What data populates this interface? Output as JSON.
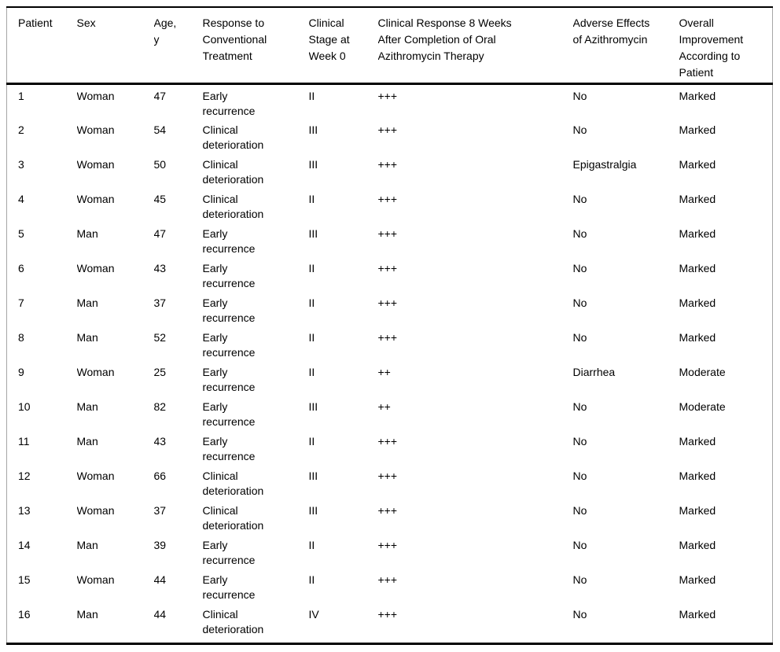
{
  "table": {
    "title_semantic": "Patient outcomes after oral azithromycin therapy",
    "columns": [
      {
        "key": "patient",
        "label": "Patient"
      },
      {
        "key": "sex",
        "label": "Sex"
      },
      {
        "key": "age",
        "label": "Age,\ny"
      },
      {
        "key": "response-conventional",
        "label": "Response to\nConventional\nTreatment"
      },
      {
        "key": "clinical-stage",
        "label": "Clinical\nStage at\nWeek 0"
      },
      {
        "key": "clinical-response-8wk",
        "label": "Clinical Response 8 Weeks\nAfter Completion of Oral\nAzithromycin Therapy"
      },
      {
        "key": "adverse-effects",
        "label": "Adverse Effects\nof Azithromycin"
      },
      {
        "key": "overall-improvement",
        "label": "Overall\nImprovement\nAccording to\nPatient"
      }
    ],
    "rows": [
      {
        "cells": [
          "1",
          "Woman",
          "47",
          "Early\nrecurrence",
          "II",
          "+++",
          "No",
          "Marked"
        ]
      },
      {
        "cells": [
          "2",
          "Woman",
          "54",
          "Clinical\ndeterioration",
          "III",
          "+++",
          "No",
          "Marked"
        ]
      },
      {
        "cells": [
          "3",
          "Woman",
          "50",
          "Clinical\ndeterioration",
          "III",
          "+++",
          "Epigastralgia",
          "Marked"
        ]
      },
      {
        "cells": [
          "4",
          "Woman",
          "45",
          "Clinical\ndeterioration",
          "II",
          "+++",
          "No",
          "Marked"
        ]
      },
      {
        "cells": [
          "5",
          "Man",
          "47",
          "Early\nrecurrence",
          "III",
          "+++",
          "No",
          "Marked"
        ]
      },
      {
        "cells": [
          "6",
          "Woman",
          "43",
          "Early\nrecurrence",
          "II",
          "+++",
          "No",
          "Marked"
        ]
      },
      {
        "cells": [
          "7",
          "Man",
          "37",
          "Early\nrecurrence",
          "II",
          "+++",
          "No",
          "Marked"
        ]
      },
      {
        "cells": [
          "8",
          "Man",
          "52",
          "Early\nrecurrence",
          "II",
          "+++",
          "No",
          "Marked"
        ]
      },
      {
        "cells": [
          "9",
          "Woman",
          "25",
          "Early\nrecurrence",
          "II",
          "++",
          "Diarrhea",
          "Moderate"
        ]
      },
      {
        "cells": [
          "10",
          "Man",
          "82",
          "Early\nrecurrence",
          "III",
          "++",
          "No",
          "Moderate"
        ]
      },
      {
        "cells": [
          "11",
          "Man",
          "43",
          "Early\nrecurrence",
          "II",
          "+++",
          "No",
          "Marked"
        ]
      },
      {
        "cells": [
          "12",
          "Woman",
          "66",
          "Clinical\ndeterioration",
          "III",
          "+++",
          "No",
          "Marked"
        ]
      },
      {
        "cells": [
          "13",
          "Woman",
          "37",
          "Clinical\ndeterioration",
          "III",
          "+++",
          "No",
          "Marked"
        ]
      },
      {
        "cells": [
          "14",
          "Man",
          "39",
          "Early\nrecurrence",
          "II",
          "+++",
          "No",
          "Marked"
        ]
      },
      {
        "cells": [
          "15",
          "Woman",
          "44",
          "Early\nrecurrence",
          "II",
          "+++",
          "No",
          "Marked"
        ]
      },
      {
        "cells": [
          "16",
          "Man",
          "44",
          "Clinical\ndeterioration",
          "IV",
          "+++",
          "No",
          "Marked"
        ]
      }
    ]
  },
  "colors": {
    "text": "#000000",
    "border_dark": "#000000",
    "border_light": "#a6a6a6",
    "background": "#ffffff"
  }
}
